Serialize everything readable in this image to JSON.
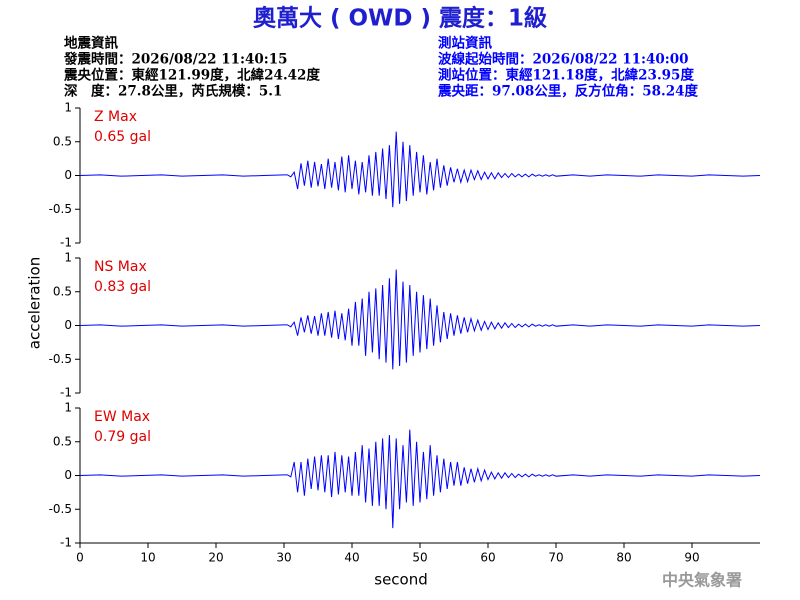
{
  "chart_data": {
    "type": "line",
    "title": "奧萬大 ( OWD ) 震度：1級",
    "info_left": [
      "地震資訊",
      "發震時間：2026/08/22 11:40:15",
      "震央位置：東經121.99度，北緯24.42度",
      "深　度：27.8公里，芮氏規模：5.1"
    ],
    "info_right": [
      "測站資訊",
      "波線起始時間：2026/08/22 11:40:00",
      "測站位置：東經121.18度，北緯23.95度",
      "震央距：97.08公里，反方位角：58.24度"
    ],
    "ylabel": "acceleration",
    "xlabel": "second",
    "footer": "中央氣象署",
    "color": "#0000ff",
    "xlim": [
      0,
      100
    ],
    "xticks": [
      0,
      10,
      20,
      30,
      40,
      50,
      60,
      70,
      80,
      90
    ],
    "ylim": [
      -1,
      1
    ],
    "yticks": [
      1,
      0.5,
      0,
      -0.5,
      -1
    ],
    "x": [
      0,
      3,
      6,
      9,
      12,
      15,
      18,
      21,
      24,
      27,
      30,
      30.5,
      31,
      31.5,
      32,
      32.5,
      33,
      33.5,
      34,
      34.5,
      35,
      35.5,
      36,
      36.5,
      37,
      37.5,
      38,
      38.5,
      39,
      39.5,
      40,
      40.5,
      41,
      41.5,
      42,
      42.5,
      43,
      43.5,
      44,
      44.5,
      45,
      45.5,
      46,
      46.5,
      47,
      47.5,
      48,
      48.5,
      49,
      49.5,
      50,
      50.5,
      51,
      51.5,
      52,
      52.5,
      53,
      53.5,
      54,
      54.5,
      55,
      55.5,
      56,
      56.5,
      57,
      57.5,
      58,
      58.5,
      59,
      59.5,
      60,
      60.5,
      61,
      61.5,
      62,
      62.5,
      63,
      63.5,
      64,
      64.5,
      65,
      65.5,
      66,
      66.5,
      67,
      67.5,
      68,
      68.5,
      69,
      69.5,
      70,
      72.5,
      75,
      77.5,
      80,
      82.5,
      85,
      87.5,
      90,
      92.5,
      95,
      97.5,
      100
    ],
    "panels": [
      {
        "label": "Z Max",
        "max_label": "0.65 gal",
        "values": [
          0,
          0.01,
          -0.01,
          0,
          0.01,
          -0.01,
          0,
          0.01,
          -0.01,
          0,
          0.01,
          0.01,
          -0.02,
          0.05,
          -0.2,
          0.18,
          -0.15,
          0.22,
          -0.18,
          0.2,
          -0.16,
          0.17,
          -0.2,
          0.25,
          -0.18,
          0.2,
          -0.22,
          0.28,
          -0.25,
          0.3,
          -0.2,
          0.22,
          -0.28,
          0.2,
          -0.25,
          0.3,
          -0.3,
          0.35,
          -0.3,
          0.4,
          -0.35,
          0.45,
          -0.47,
          0.65,
          -0.42,
          0.5,
          -0.38,
          0.45,
          -0.3,
          0.35,
          -0.25,
          0.3,
          -0.28,
          0.2,
          -0.22,
          0.25,
          -0.18,
          0.15,
          -0.15,
          0.12,
          -0.1,
          0.1,
          -0.1,
          0.08,
          -0.09,
          0.08,
          -0.06,
          0.07,
          -0.06,
          0.05,
          -0.05,
          0.04,
          -0.05,
          0.04,
          -0.03,
          0.03,
          -0.03,
          0.03,
          -0.02,
          0.02,
          -0.02,
          0.02,
          -0.02,
          0.02,
          -0.01,
          0.01,
          -0.01,
          0.01,
          -0.01,
          0.01,
          -0.01,
          0.01,
          -0.01,
          0.01,
          0,
          -0.01,
          0.01,
          0,
          -0.01,
          0.01,
          0,
          -0.01,
          0
        ]
      },
      {
        "label": "NS Max",
        "max_label": "0.83 gal",
        "values": [
          0,
          0.01,
          -0.01,
          0,
          0.01,
          -0.01,
          0,
          0.01,
          -0.01,
          0,
          0.01,
          0.01,
          -0.02,
          0.05,
          -0.15,
          0.12,
          -0.1,
          0.15,
          -0.12,
          0.14,
          -0.15,
          0.18,
          -0.15,
          0.2,
          -0.18,
          0.22,
          -0.2,
          0.18,
          -0.22,
          0.25,
          -0.3,
          0.35,
          -0.3,
          0.4,
          -0.45,
          0.5,
          -0.4,
          0.55,
          -0.5,
          0.6,
          -0.55,
          0.7,
          -0.65,
          0.83,
          -0.6,
          0.65,
          -0.55,
          0.6,
          -0.45,
          0.5,
          -0.4,
          0.45,
          -0.35,
          0.4,
          -0.3,
          0.3,
          -0.25,
          0.2,
          -0.2,
          0.18,
          -0.15,
          0.15,
          -0.12,
          0.12,
          -0.1,
          0.1,
          -0.08,
          0.08,
          -0.07,
          0.06,
          -0.06,
          0.05,
          -0.05,
          0.04,
          -0.04,
          0.04,
          -0.03,
          0.03,
          -0.03,
          0.02,
          -0.02,
          0.02,
          -0.02,
          0.02,
          -0.01,
          0.01,
          -0.01,
          0.01,
          -0.01,
          0.01,
          -0.01,
          0.01,
          -0.01,
          0.01,
          0,
          -0.01,
          0.01,
          0,
          -0.01,
          0.01,
          0,
          -0.01,
          0
        ]
      },
      {
        "label": "EW Max",
        "max_label": "0.79 gal",
        "values": [
          0,
          0.01,
          -0.01,
          0,
          0.01,
          -0.01,
          0,
          0.01,
          -0.01,
          0,
          0.01,
          0.01,
          -0.02,
          0.2,
          -0.25,
          0.2,
          -0.3,
          0.25,
          -0.2,
          0.28,
          -0.22,
          0.3,
          -0.25,
          0.3,
          -0.32,
          0.35,
          -0.28,
          0.3,
          -0.25,
          0.28,
          -0.3,
          0.35,
          -0.3,
          0.45,
          -0.4,
          0.4,
          -0.45,
          0.5,
          -0.45,
          0.55,
          -0.5,
          0.6,
          -0.78,
          0.55,
          -0.5,
          0.45,
          -0.4,
          0.68,
          -0.45,
          0.5,
          -0.4,
          0.35,
          -0.35,
          0.45,
          -0.3,
          0.3,
          -0.25,
          0.25,
          -0.2,
          0.2,
          -0.15,
          0.2,
          -0.15,
          0.12,
          -0.12,
          0.1,
          -0.1,
          0.1,
          -0.08,
          0.08,
          -0.06,
          0.05,
          -0.05,
          0.04,
          -0.04,
          0.04,
          -0.03,
          0.03,
          -0.03,
          0.02,
          -0.02,
          0.02,
          -0.02,
          0.02,
          -0.01,
          0.01,
          -0.01,
          0.01,
          -0.01,
          0.01,
          -0.01,
          0.01,
          -0.01,
          0.01,
          0,
          -0.01,
          0.01,
          0,
          -0.01,
          0.01,
          0,
          -0.01,
          0
        ]
      }
    ]
  }
}
